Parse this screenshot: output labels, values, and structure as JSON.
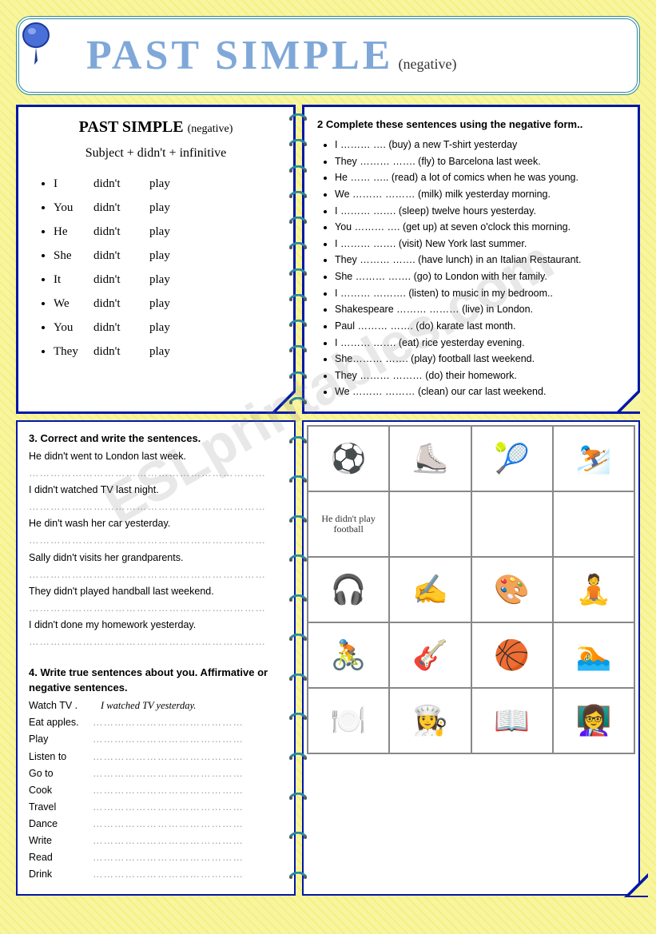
{
  "title": {
    "main": "PAST SIMPLE",
    "sub": "(negative)"
  },
  "box1": {
    "heading": "PAST SIMPLE",
    "heading_sub": "(negative)",
    "formula": "Subject + didn't + infinitive",
    "rows": [
      {
        "s": "I",
        "a": "didn't",
        "v": "play"
      },
      {
        "s": "You",
        "a": "didn't",
        "v": "play"
      },
      {
        "s": "He",
        "a": "didn't",
        "v": "play"
      },
      {
        "s": "She",
        "a": "didn't",
        "v": "play"
      },
      {
        "s": "It",
        "a": "didn't",
        "v": "play"
      },
      {
        "s": "We",
        "a": "didn't",
        "v": "play"
      },
      {
        "s": "You",
        "a": "didn't",
        "v": "play"
      },
      {
        "s": "They",
        "a": "didn't",
        "v": "play"
      }
    ]
  },
  "box2": {
    "title": "2 Complete these sentences using the negative form..",
    "items": [
      "I ……… …. (buy) a new T-shirt yesterday",
      "They ……… ……. (fly) to Barcelona last week.",
      "He …… ….. (read) a lot of comics when he was young.",
      "We ……… ……… (milk) milk yesterday morning.",
      "I ……… ……. (sleep) twelve hours yesterday.",
      "You ……… …. (get up) at seven o'clock this morning.",
      "I ……… ……. (visit) New York last summer.",
      "They ……… ……. (have lunch) in an Italian Restaurant.",
      "She ……… ……. (go) to London with her family.",
      "I ……… ………. (listen) to music in my bedroom..",
      "Shakespeare ……… ……… (live) in London.",
      "Paul ……… ……. (do) karate last month.",
      "I ……… ……. (eat) rice yesterday evening.",
      "She……… ……. (play) football last weekend.",
      "They ……… ……… (do) their homework.",
      "We ……… ……… (clean) our car last weekend."
    ]
  },
  "box3": {
    "title": "3. Correct and write the sentences.",
    "items": [
      "He didn't went to London last week.",
      "I didn't watched TV last night.",
      "He din't wash her car yesterday.",
      "Sally didn't visits her grandparents.",
      "They didn't played handball last weekend.",
      "I didn't done my homework yesterday."
    ]
  },
  "box4": {
    "title": "4. Write true sentences about you. Affirmative or negative sentences.",
    "example_label": "Watch TV .",
    "example_text": "I watched TV yesterday.",
    "items": [
      "Eat apples.",
      "Play",
      "Listen to",
      "Go to",
      "Cook",
      "Travel",
      "Dance",
      "Write",
      "Read",
      "Drink"
    ]
  },
  "picgrid": {
    "example": "He didn't play football",
    "cells": [
      {
        "t": "soccer",
        "c": "#3366cc"
      },
      {
        "t": "skate",
        "c": "#ff9933"
      },
      {
        "t": "tennis",
        "c": "#ffcc00"
      },
      {
        "t": "ski",
        "c": "#33aa66"
      },
      {
        "t": "example",
        "c": "#000"
      },
      {
        "t": "blank",
        "c": "#fff"
      },
      {
        "t": "blank",
        "c": "#fff"
      },
      {
        "t": "blank",
        "c": "#fff"
      },
      {
        "t": "music",
        "c": "#66cc66"
      },
      {
        "t": "write",
        "c": "#ffcc00"
      },
      {
        "t": "paint",
        "c": "#cc3333"
      },
      {
        "t": "yoga",
        "c": "#cc6699"
      },
      {
        "t": "bike",
        "c": "#3399cc"
      },
      {
        "t": "guitar",
        "c": "#cc9933"
      },
      {
        "t": "basket",
        "c": "#ff9900"
      },
      {
        "t": "swim",
        "c": "#3399cc"
      },
      {
        "t": "eat",
        "c": "#ff99cc"
      },
      {
        "t": "cook",
        "c": "#ff6633"
      },
      {
        "t": "read",
        "c": "#ffcc00"
      },
      {
        "t": "teach",
        "c": "#339966"
      }
    ]
  },
  "watermark": "ESLprintables.com",
  "colors": {
    "border": "#0018a8",
    "title": "#7fa8d8",
    "bg": "#f8f5a0"
  }
}
